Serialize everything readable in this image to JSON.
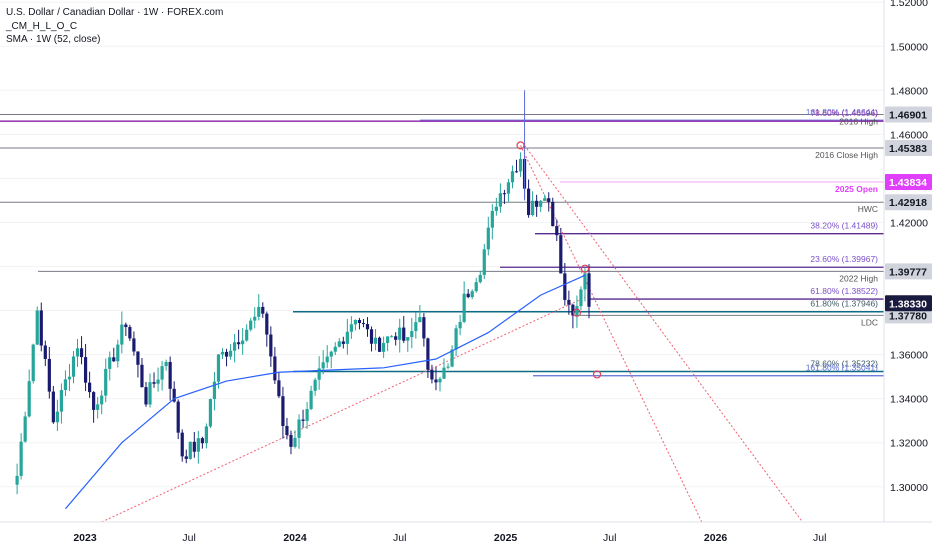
{
  "header": {
    "title": "U.S. Dollar / Canadian Dollar · 1W · FOREX.com",
    "indicator1": "_CM_H_L_O_C",
    "indicator2": "SMA · 1W (52, close)"
  },
  "colors": {
    "up": "#26a69a",
    "down": "#1a1a6e",
    "sma": "#2962ff",
    "fib_purple": "#9b3fb5",
    "fib_blue": "#5b6dd6",
    "gray_line": "#787b86",
    "open_magenta": "#e040fb",
    "teal_line": "#0d6b86",
    "trend_red": "#f06070"
  },
  "chart_data": {
    "type": "candlestick",
    "title": "U.S. Dollar / Canadian Dollar · 1W · FOREX.com",
    "ylim": [
      1.284,
      1.521
    ],
    "y_ticks": [
      "1.30000",
      "1.32000",
      "1.34000",
      "1.36000",
      "1.38000",
      "1.40000",
      "1.42000",
      "1.44000",
      "1.46000",
      "1.48000",
      "1.50000",
      "1.52000"
    ],
    "x_ticks": [
      "2023",
      "Jul",
      "2024",
      "Jul",
      "2025",
      "Jul",
      "2026",
      "Jul"
    ],
    "close_path": [
      [
        "2022-09-05",
        1.305
      ],
      [
        "2022-10-10",
        1.38
      ],
      [
        "2022-11-07",
        1.33
      ],
      [
        "2022-12-19",
        1.365
      ],
      [
        "2023-01-16",
        1.335
      ],
      [
        "2023-03-13",
        1.375
      ],
      [
        "2023-04-17",
        1.34
      ],
      [
        "2023-05-22",
        1.358
      ],
      [
        "2023-06-19",
        1.315
      ],
      [
        "2023-07-24",
        1.32
      ],
      [
        "2023-08-21",
        1.358
      ],
      [
        "2023-10-02",
        1.37
      ],
      [
        "2023-11-06",
        1.38
      ],
      [
        "2023-12-11",
        1.328
      ],
      [
        "2023-12-25",
        1.32
      ],
      [
        "2024-02-12",
        1.35
      ],
      [
        "2024-04-15",
        1.378
      ],
      [
        "2024-05-20",
        1.364
      ],
      [
        "2024-06-24",
        1.37
      ],
      [
        "2024-07-15",
        1.365
      ],
      [
        "2024-08-05",
        1.38
      ],
      [
        "2024-08-19",
        1.35
      ],
      [
        "2024-09-23",
        1.353
      ],
      [
        "2024-10-21",
        1.385
      ],
      [
        "2024-11-18",
        1.4
      ],
      [
        "2024-12-16",
        1.43
      ],
      [
        "2025-01-06",
        1.44
      ],
      [
        "2025-01-27",
        1.45
      ],
      [
        "2025-02-10",
        1.425
      ],
      [
        "2025-03-10",
        1.435
      ],
      [
        "2025-03-31",
        1.415
      ],
      [
        "2025-04-14",
        1.385
      ],
      [
        "2025-05-05",
        1.38
      ],
      [
        "2025-05-12",
        1.39
      ],
      [
        "2025-05-19",
        1.395
      ],
      [
        "2025-05-26",
        1.383
      ]
    ],
    "series": [
      {
        "name": "SMA · 1W (52, close)",
        "points": [
          [
            "2022-11-28",
            1.29
          ],
          [
            "2023-03-06",
            1.32
          ],
          [
            "2023-06-05",
            1.34
          ],
          [
            "2023-09-04",
            1.348
          ],
          [
            "2023-12-04",
            1.352
          ],
          [
            "2024-03-04",
            1.353
          ],
          [
            "2024-06-03",
            1.354
          ],
          [
            "2024-09-02",
            1.358
          ],
          [
            "2024-12-02",
            1.37
          ],
          [
            "2025-03-03",
            1.387
          ],
          [
            "2025-05-19",
            1.396
          ]
        ]
      }
    ],
    "levels": [
      {
        "price": 1.46901,
        "label": "2016 High",
        "tag": "1.46901",
        "style": "gray"
      },
      {
        "price": 1.46644,
        "label": "161.80% (1.46644)",
        "style": "fib_blue"
      },
      {
        "price": 1.46596,
        "label": "78.60% (1.46596)",
        "style": "fib_purple_solid"
      },
      {
        "price": 1.45383,
        "label": "2016 Close High",
        "tag": "1.45383",
        "style": "gray"
      },
      {
        "price": 1.43834,
        "label": "2025 Open",
        "tag": "1.43834",
        "style": "magenta"
      },
      {
        "price": 1.42918,
        "label": "HWC",
        "tag": "1.42918",
        "style": "gray"
      },
      {
        "price": 1.41489,
        "label": "38.20% (1.41489)",
        "style": "fib_purple"
      },
      {
        "price": 1.39967,
        "label": "23.60% (1.39967)",
        "style": "fib_purple"
      },
      {
        "price": 1.39777,
        "label": "2022 High",
        "tag": "1.39777",
        "style": "gray"
      },
      {
        "price": 1.38522,
        "label": "61.80% (1.38522)",
        "style": "fib_purple"
      },
      {
        "price": 1.37946,
        "label": "61.80% (1.37946)",
        "style": "fib_teal"
      },
      {
        "price": 1.3778,
        "label": "LDC",
        "tag": "1.37780",
        "style": "gray"
      },
      {
        "price": 1.35232,
        "label": "78.60% (1.35232)",
        "style": "fib_teal"
      },
      {
        "price": 1.35041,
        "label": "161.80% (1.35041)",
        "style": "fib_blue"
      }
    ],
    "current_price": "1.38330",
    "trendlines": [
      {
        "from": [
          "2023-01-30",
          1.284
        ],
        "to": [
          "2025-05-19",
          1.386
        ]
      },
      {
        "from": [
          "2025-01-27",
          1.455
        ],
        "to": [
          "2025-12-08",
          1.284
        ]
      },
      {
        "from": [
          "2025-02-03",
          1.455
        ],
        "to": [
          "2026-06-01",
          1.284
        ]
      }
    ],
    "markers": [
      [
        "2025-01-27",
        1.455
      ],
      [
        "2025-05-19",
        1.399
      ],
      [
        "2025-05-05",
        1.379
      ],
      [
        "2025-06-09",
        1.351
      ]
    ]
  }
}
